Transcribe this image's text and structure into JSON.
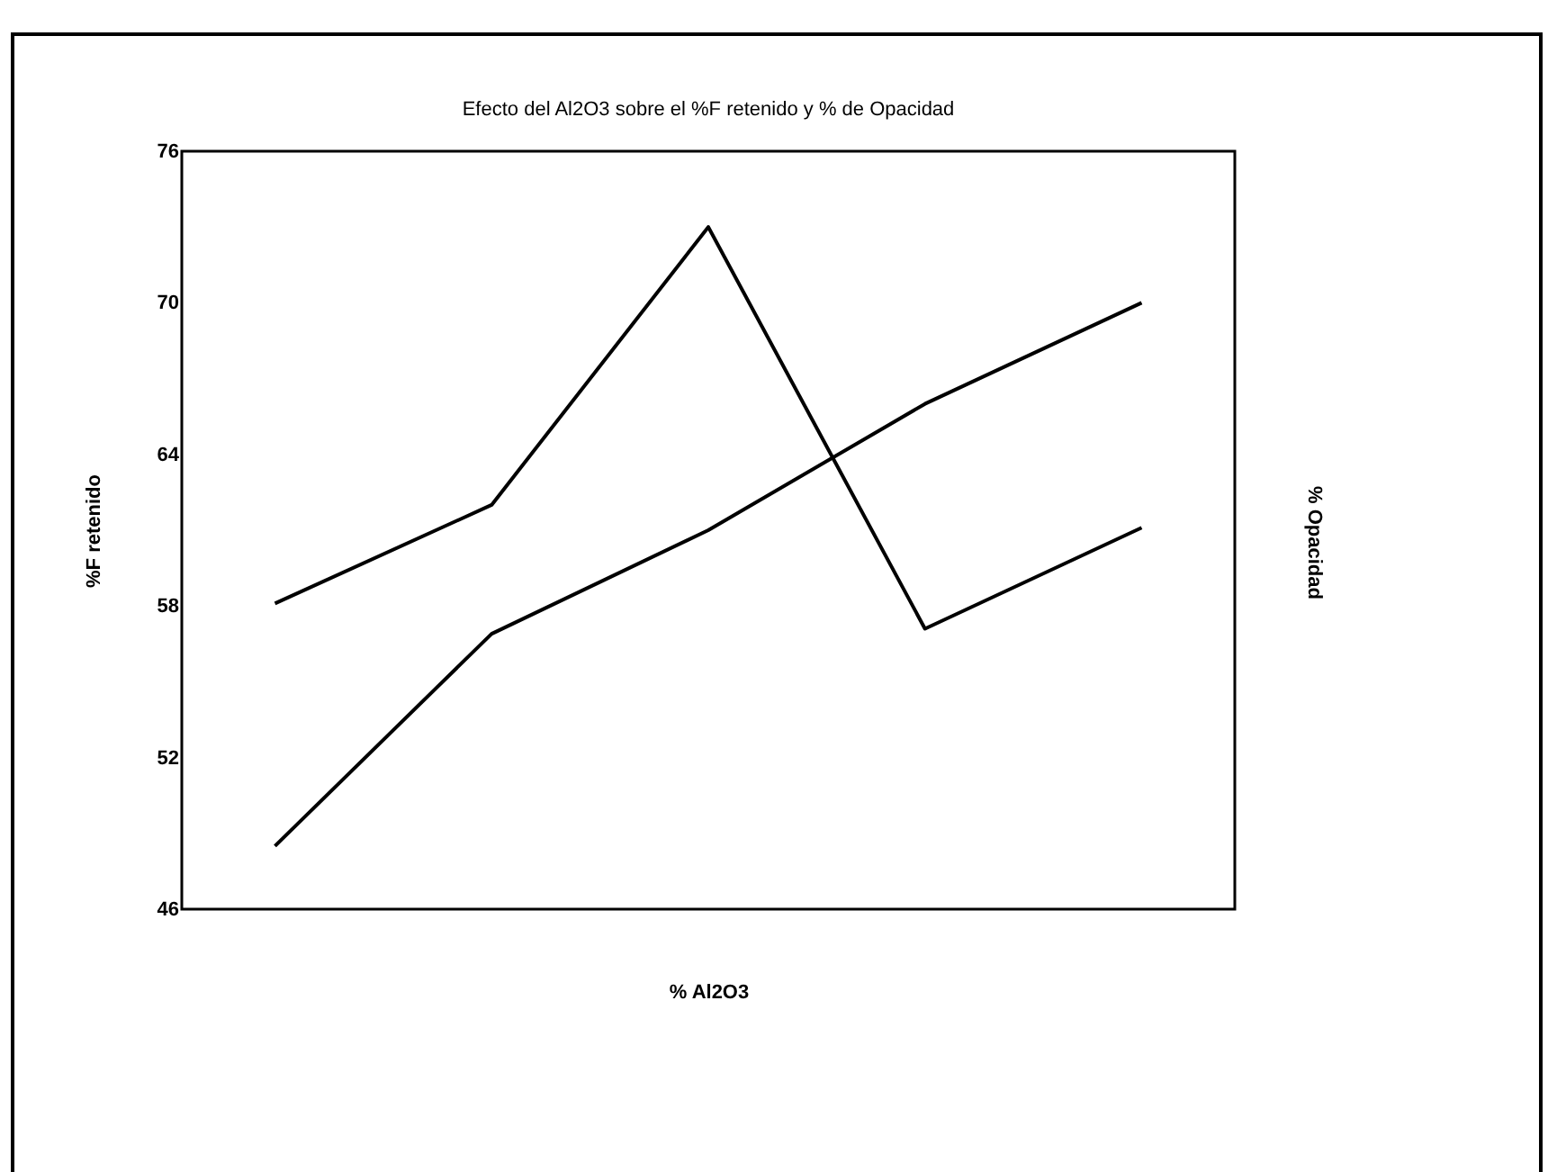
{
  "chart_data": {
    "type": "line",
    "title": "Efecto del Al2O3 sobre el %F retenido y % de Opacidad",
    "xlabel": "% Al2O3",
    "ylabel": "%F retenido",
    "y2label": "% Opacidad",
    "categories": [
      null,
      null,
      null,
      null,
      null
    ],
    "series": [
      {
        "color": "#000000",
        "values": [
          58.1,
          62.0,
          73.0,
          57.1,
          61.1
        ]
      },
      {
        "color": "#000000",
        "values": [
          48.5,
          56.9,
          61.0,
          66.0,
          70.0
        ]
      }
    ],
    "ylim": [
      46,
      76
    ],
    "yticks": [
      46,
      52,
      58,
      64,
      70,
      76
    ],
    "tick_labels": "y",
    "grid": false,
    "legend": false,
    "marker": "none",
    "line_style": "solid"
  }
}
